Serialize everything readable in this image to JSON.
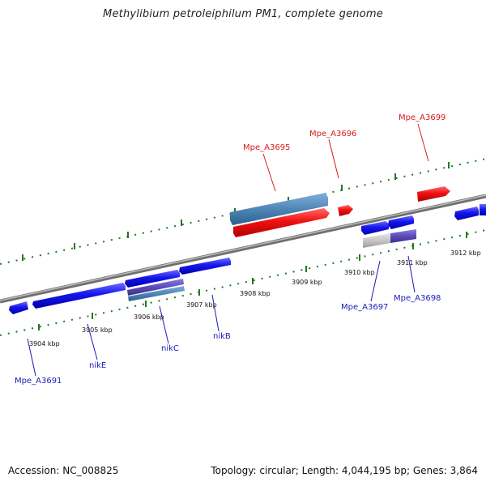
{
  "title": "Methylibium petroleiphilum PM1, complete genome",
  "footer": {
    "accession": "Accession: NC_008825",
    "stats": "Topology: circular; Length: 4,044,195 bp; Genes: 3,864"
  },
  "kbp_labels": [
    "3904 kbp",
    "3905 kbp",
    "3906 kbp",
    "3907 kbp",
    "3908 kbp",
    "3909 kbp",
    "3910 kbp",
    "3911 kbp",
    "3912 kbp"
  ],
  "genes_top": [
    "Mpe_A3695",
    "Mpe_A3696",
    "Mpe_A3699"
  ],
  "genes_bottom": [
    "Mpe_A3691",
    "nikE",
    "nikC",
    "nikB",
    "Mpe_A3697",
    "Mpe_A3698"
  ],
  "colors": {
    "forward_gene": "#ee1111",
    "reverse_gene": "#1111ee",
    "rna_feature": "#4f86b8",
    "purple_feature": "#6a5bc8",
    "backbone": "#888888",
    "ticks": "#1f7a1f"
  }
}
